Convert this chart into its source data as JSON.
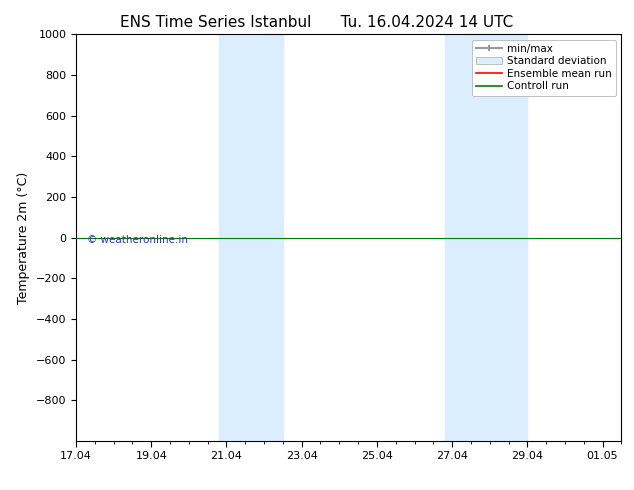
{
  "title_left": "ENS Time Series Istanbul",
  "title_right": "Tu. 16.04.2024 14 UTC",
  "ylabel": "Temperature 2m (°C)",
  "ylim_top": -1000,
  "ylim_bottom": 1000,
  "yticks": [
    -800,
    -600,
    -400,
    -200,
    0,
    200,
    400,
    600,
    800,
    1000
  ],
  "xtick_labels": [
    "17.04",
    "19.04",
    "21.04",
    "23.04",
    "25.04",
    "27.04",
    "29.04",
    "01.05"
  ],
  "xtick_positions": [
    0,
    2,
    4,
    6,
    8,
    10,
    12,
    14
  ],
  "x_min": 0,
  "x_max": 14.5,
  "shaded_bands": [
    {
      "x_start": 3.8,
      "x_end": 5.5
    },
    {
      "x_start": 9.8,
      "x_end": 12.0
    }
  ],
  "horizontal_line_y": 0,
  "control_run_color": "#008000",
  "ensemble_mean_color": "#ff0000",
  "minmax_color": "#999999",
  "std_dev_color": "#daeeff",
  "watermark_text": "© weatheronline.in",
  "watermark_color": "#3333bb",
  "background_color": "#ffffff",
  "legend_entries": [
    "min/max",
    "Standard deviation",
    "Ensemble mean run",
    "Controll run"
  ],
  "title_fontsize": 11,
  "axis_label_fontsize": 9,
  "tick_fontsize": 8,
  "legend_fontsize": 7.5
}
